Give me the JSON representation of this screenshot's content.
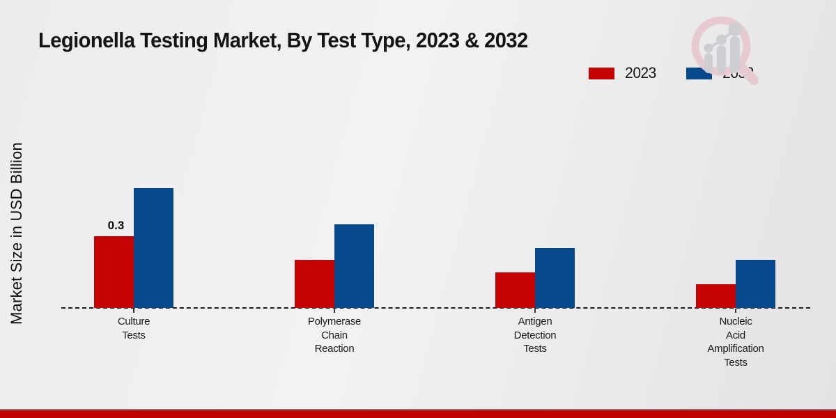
{
  "page": {
    "title": "Legionella Testing Market, By Test Type, 2023 & 2032",
    "watermark_icon": "magnifier-growth-chart-logo"
  },
  "colors": {
    "series_2023": "#c40404",
    "series_2032": "#064a8c",
    "footer_red": "#bf0303",
    "baseline": "#1c1c1c",
    "watermark_ring": "#e7cad0",
    "watermark_bars": "#cdced2"
  },
  "chart_data": {
    "type": "bar",
    "title": "Legionella Testing Market, By Test Type, 2023 & 2032",
    "xlabel": "",
    "ylabel": "Market Size in USD Billion",
    "categories": [
      "Culture Tests",
      "Polymerase Chain Reaction",
      "Antigen Detection Tests",
      "Nucleic Acid Amplification Tests"
    ],
    "category_lines": [
      [
        "Culture",
        "Tests"
      ],
      [
        "Polymerase",
        "Chain",
        "Reaction"
      ],
      [
        "Antigen",
        "Detection",
        "Tests"
      ],
      [
        "Nucleic",
        "Acid",
        "Amplification",
        "Tests"
      ]
    ],
    "series": [
      {
        "name": "2023",
        "color": "#c40404",
        "values": [
          0.3,
          0.2,
          0.15,
          0.1
        ],
        "data_labels": [
          "0.3",
          "",
          "",
          ""
        ]
      },
      {
        "name": "2032",
        "color": "#064a8c",
        "values": [
          0.5,
          0.35,
          0.25,
          0.2
        ],
        "data_labels": [
          "",
          "",
          "",
          ""
        ]
      }
    ],
    "ylim": [
      0,
      0.55
    ],
    "y_axis_ticks_visible": false,
    "grid": false,
    "baseline_style": "dashed",
    "legend_position": "top-right"
  }
}
